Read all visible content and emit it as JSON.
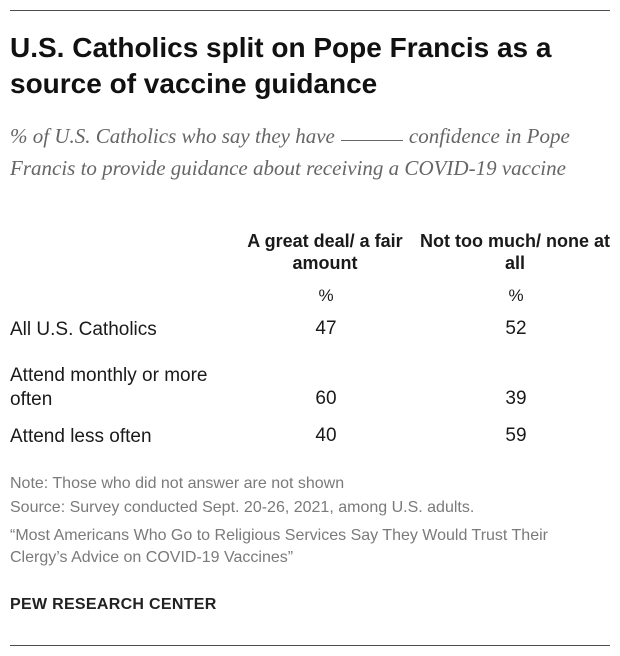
{
  "header": {
    "title": "U.S. Catholics split on Pope Francis as a source of vaccine guidance",
    "subtitle_part1": "% of U.S. Catholics who say they have",
    "subtitle_part2": "confidence in Pope Francis to provide guidance about receiving a COVID-19 vaccine"
  },
  "chart_data": {
    "type": "table",
    "title": "U.S. Catholics split on Pope Francis as a source of vaccine guidance",
    "subtitle": "% of U.S. Catholics who say they have ____ confidence in Pope Francis to provide guidance about receiving a COVID-19 vaccine",
    "columns": [
      {
        "label": "A great deal/ a fair amount",
        "unit": "%"
      },
      {
        "label": "Not too much/ none at all",
        "unit": "%"
      }
    ],
    "rows": [
      {
        "label": "All U.S. Catholics",
        "values": [
          "47",
          "52"
        ]
      },
      {
        "label": "Attend monthly or more often",
        "values": [
          "60",
          "39"
        ]
      },
      {
        "label": "Attend less often",
        "values": [
          "40",
          "59"
        ]
      }
    ]
  },
  "notes": {
    "note": "Note: Those who did not answer are not shown",
    "source": "Source: Survey conducted Sept. 20-26, 2021, among U.S. adults.",
    "report_title": "“Most Americans Who Go to Religious Services Say They Would Trust Their Clergy’s Advice on COVID-19 Vaccines”"
  },
  "footer": {
    "org": "PEW RESEARCH CENTER"
  }
}
